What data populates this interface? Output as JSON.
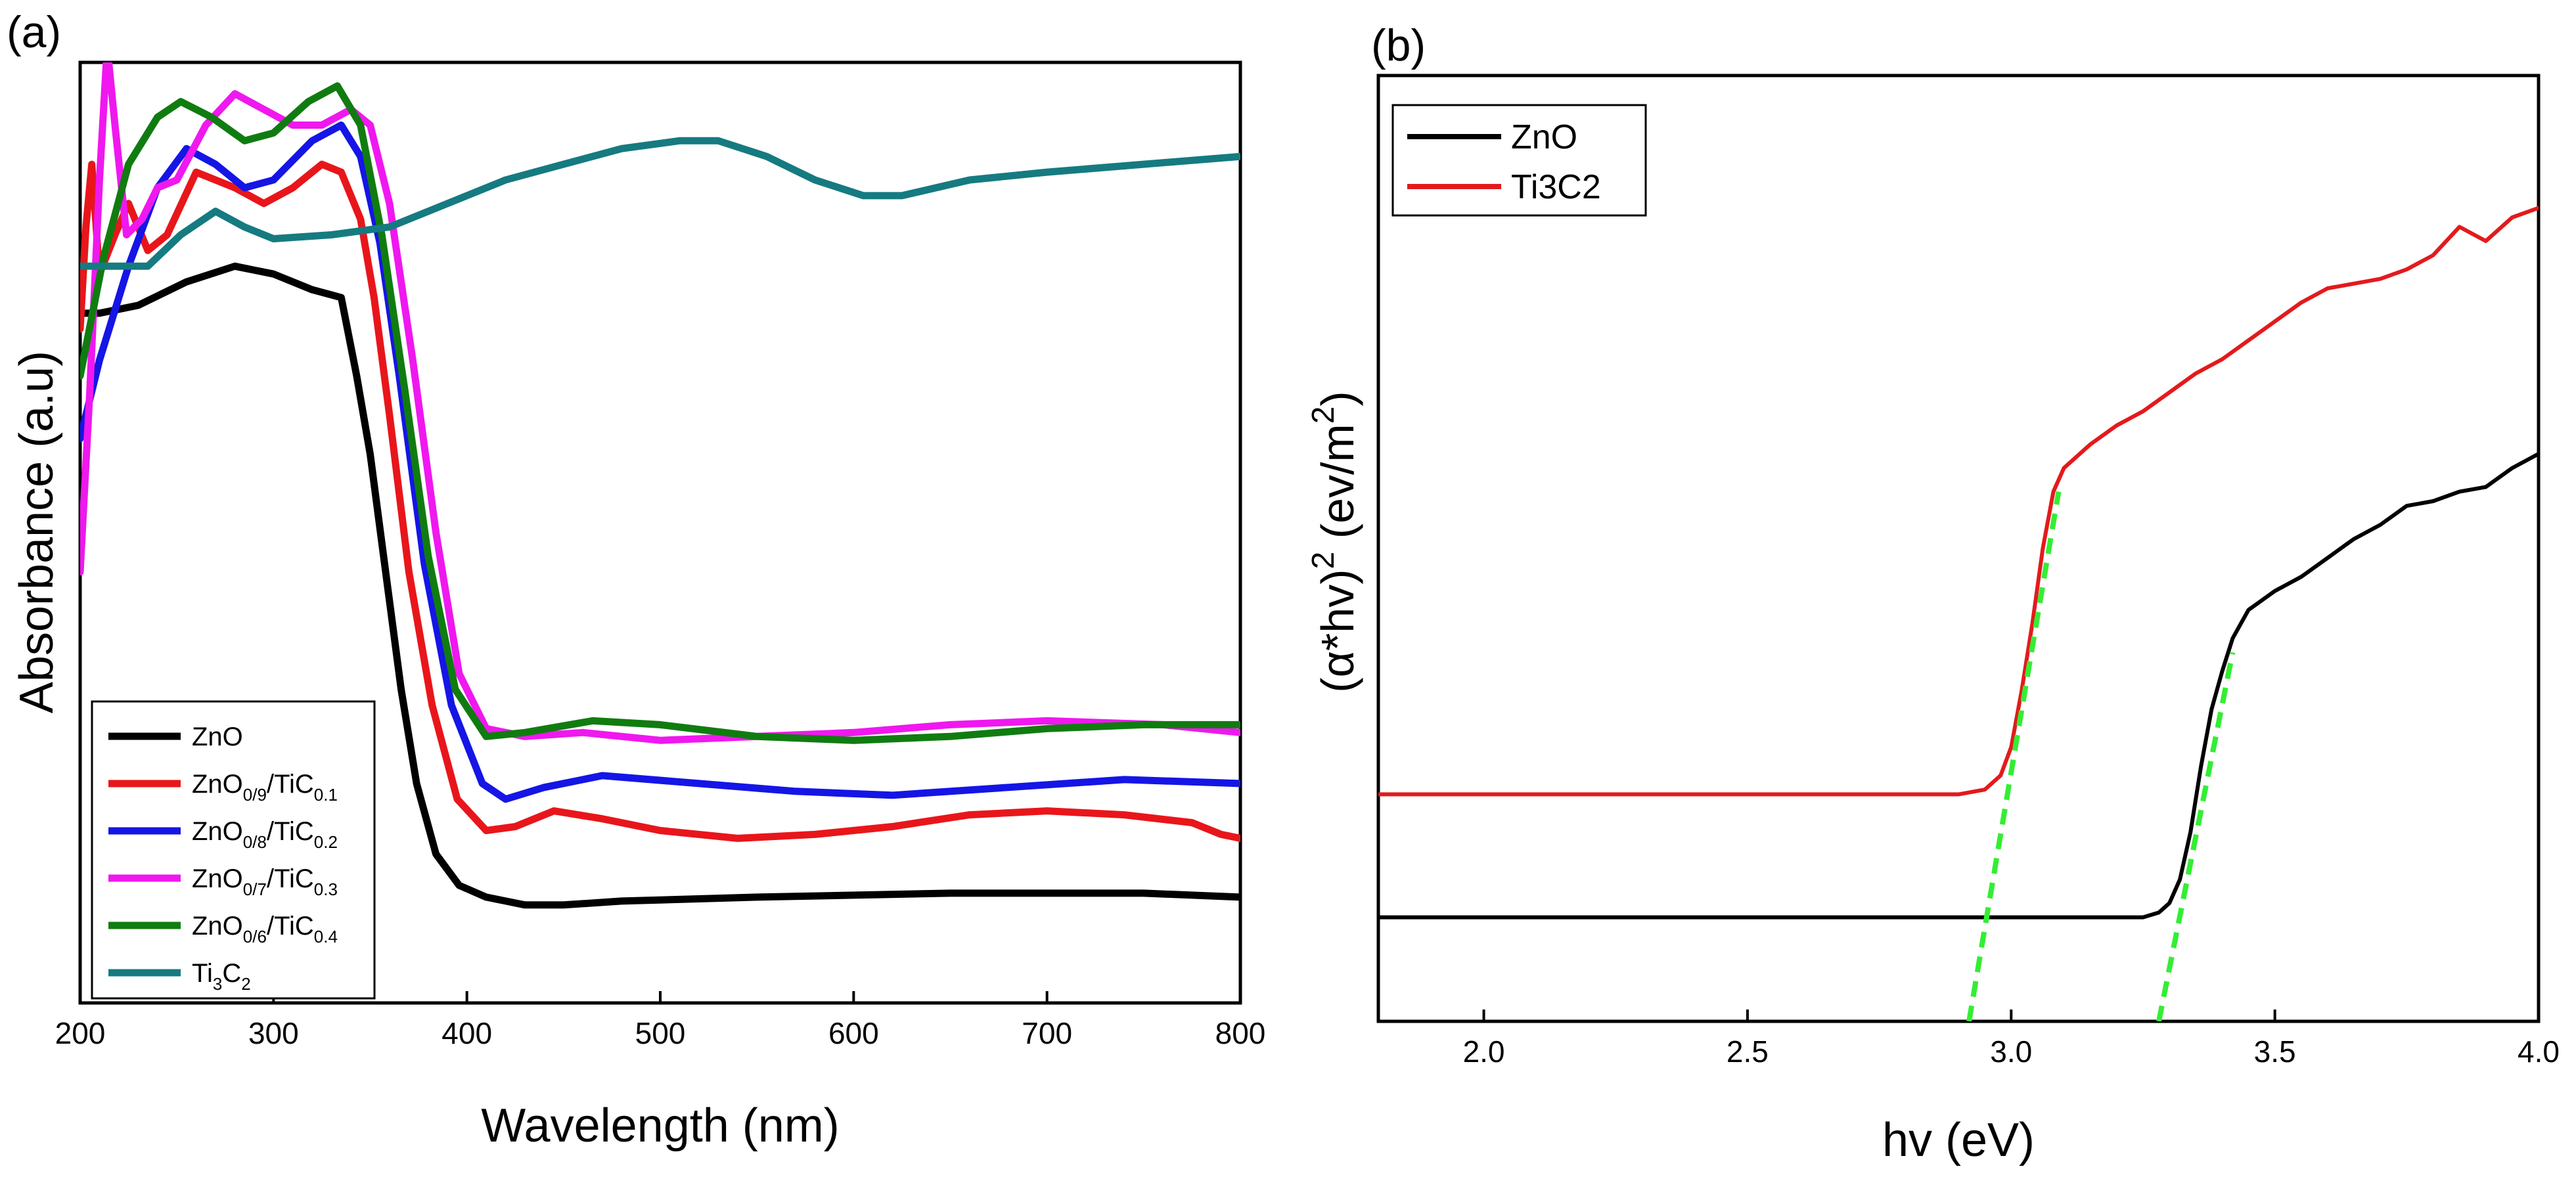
{
  "figure": {
    "panel_a_label": "(a)",
    "panel_b_label": "(b)"
  },
  "chart_data": [
    {
      "type": "line",
      "panel": "(a)",
      "title": "",
      "xlabel": "Wavelength (nm)",
      "ylabel": "Absorbance (a.u)",
      "xlim": [
        200,
        800
      ],
      "ylim": [
        0,
        1.2
      ],
      "xticks": [
        200,
        300,
        400,
        500,
        600,
        700,
        800
      ],
      "yticks_shown": false,
      "grid": false,
      "legend_position": "bottom-left",
      "series": [
        {
          "name": "ZnO",
          "label_main": "ZnO",
          "label_sub1": "",
          "label_mid": "",
          "label_sub2": "",
          "color": "#000000",
          "points": [
            [
              200,
              0.88
            ],
            [
              210,
              0.88
            ],
            [
              230,
              0.89
            ],
            [
              255,
              0.92
            ],
            [
              280,
              0.94
            ],
            [
              300,
              0.93
            ],
            [
              320,
              0.91
            ],
            [
              335,
              0.9
            ],
            [
              343,
              0.8
            ],
            [
              350,
              0.7
            ],
            [
              358,
              0.55
            ],
            [
              366,
              0.4
            ],
            [
              374,
              0.28
            ],
            [
              384,
              0.19
            ],
            [
              396,
              0.15
            ],
            [
              410,
              0.135
            ],
            [
              430,
              0.125
            ],
            [
              450,
              0.125
            ],
            [
              480,
              0.13
            ],
            [
              550,
              0.135
            ],
            [
              650,
              0.14
            ],
            [
              750,
              0.14
            ],
            [
              800,
              0.135
            ]
          ]
        },
        {
          "name": "ZnO0/9/TiC0.1",
          "label_main": "ZnO",
          "label_sub1": "0/9",
          "label_mid": "/TiC",
          "label_sub2": "0.1",
          "color": "#e8161b",
          "points": [
            [
              200,
              0.86
            ],
            [
              203,
              0.99
            ],
            [
              206,
              1.07
            ],
            [
              210,
              0.93
            ],
            [
              218,
              0.98
            ],
            [
              225,
              1.02
            ],
            [
              235,
              0.96
            ],
            [
              245,
              0.98
            ],
            [
              260,
              1.06
            ],
            [
              280,
              1.04
            ],
            [
              295,
              1.02
            ],
            [
              310,
              1.04
            ],
            [
              325,
              1.07
            ],
            [
              335,
              1.06
            ],
            [
              345,
              1.0
            ],
            [
              352,
              0.9
            ],
            [
              360,
              0.75
            ],
            [
              370,
              0.55
            ],
            [
              382,
              0.38
            ],
            [
              395,
              0.26
            ],
            [
              410,
              0.22
            ],
            [
              425,
              0.225
            ],
            [
              445,
              0.245
            ],
            [
              470,
              0.235
            ],
            [
              500,
              0.22
            ],
            [
              540,
              0.21
            ],
            [
              580,
              0.215
            ],
            [
              620,
              0.225
            ],
            [
              660,
              0.24
            ],
            [
              700,
              0.245
            ],
            [
              740,
              0.24
            ],
            [
              775,
              0.23
            ],
            [
              790,
              0.215
            ],
            [
              800,
              0.21
            ]
          ]
        },
        {
          "name": "ZnO0/8/TiC0.2",
          "label_main": "ZnO",
          "label_sub1": "0/8",
          "label_mid": "/TiC",
          "label_sub2": "0.2",
          "color": "#1515e6",
          "points": [
            [
              200,
              0.72
            ],
            [
              210,
              0.82
            ],
            [
              225,
              0.94
            ],
            [
              240,
              1.04
            ],
            [
              255,
              1.09
            ],
            [
              270,
              1.07
            ],
            [
              285,
              1.04
            ],
            [
              300,
              1.05
            ],
            [
              320,
              1.1
            ],
            [
              335,
              1.12
            ],
            [
              345,
              1.08
            ],
            [
              355,
              0.97
            ],
            [
              365,
              0.8
            ],
            [
              378,
              0.56
            ],
            [
              392,
              0.38
            ],
            [
              408,
              0.28
            ],
            [
              420,
              0.26
            ],
            [
              440,
              0.275
            ],
            [
              470,
              0.29
            ],
            [
              520,
              0.28
            ],
            [
              570,
              0.27
            ],
            [
              620,
              0.265
            ],
            [
              680,
              0.275
            ],
            [
              740,
              0.285
            ],
            [
              800,
              0.28
            ]
          ]
        },
        {
          "name": "ZnO0/7/TiC0.3",
          "label_main": "ZnO",
          "label_sub1": "0/7",
          "label_mid": "/TiC",
          "label_sub2": "0.3",
          "color": "#ef18ef",
          "points": [
            [
              200,
              0.55
            ],
            [
              205,
              0.78
            ],
            [
              210,
              1.05
            ],
            [
              214,
              1.22
            ],
            [
              218,
              1.12
            ],
            [
              224,
              0.98
            ],
            [
              232,
              1.0
            ],
            [
              240,
              1.04
            ],
            [
              250,
              1.05
            ],
            [
              265,
              1.12
            ],
            [
              280,
              1.16
            ],
            [
              295,
              1.14
            ],
            [
              310,
              1.12
            ],
            [
              325,
              1.12
            ],
            [
              340,
              1.14
            ],
            [
              350,
              1.12
            ],
            [
              360,
              1.02
            ],
            [
              372,
              0.82
            ],
            [
              384,
              0.6
            ],
            [
              396,
              0.42
            ],
            [
              410,
              0.35
            ],
            [
              430,
              0.34
            ],
            [
              460,
              0.345
            ],
            [
              500,
              0.335
            ],
            [
              550,
              0.34
            ],
            [
              600,
              0.345
            ],
            [
              650,
              0.355
            ],
            [
              700,
              0.36
            ],
            [
              760,
              0.355
            ],
            [
              800,
              0.345
            ]
          ]
        },
        {
          "name": "ZnO0/6/TiC0.4",
          "label_main": "ZnO",
          "label_sub1": "0/6",
          "label_mid": "/TiC",
          "label_sub2": "0.4",
          "color": "#107c10",
          "points": [
            [
              200,
              0.8
            ],
            [
              212,
              0.95
            ],
            [
              225,
              1.07
            ],
            [
              240,
              1.13
            ],
            [
              252,
              1.15
            ],
            [
              268,
              1.13
            ],
            [
              285,
              1.1
            ],
            [
              300,
              1.11
            ],
            [
              318,
              1.15
            ],
            [
              333,
              1.17
            ],
            [
              345,
              1.12
            ],
            [
              356,
              0.98
            ],
            [
              368,
              0.78
            ],
            [
              380,
              0.57
            ],
            [
              394,
              0.4
            ],
            [
              410,
              0.34
            ],
            [
              430,
              0.345
            ],
            [
              465,
              0.36
            ],
            [
              500,
              0.355
            ],
            [
              550,
              0.34
            ],
            [
              600,
              0.335
            ],
            [
              650,
              0.34
            ],
            [
              700,
              0.35
            ],
            [
              750,
              0.355
            ],
            [
              800,
              0.355
            ]
          ]
        },
        {
          "name": "Ti3C2",
          "label_main": "Ti",
          "label_sub1": "3",
          "label_mid": "C",
          "label_sub2": "2",
          "color": "#157b80",
          "points": [
            [
              200,
              0.94
            ],
            [
              215,
              0.94
            ],
            [
              235,
              0.94
            ],
            [
              252,
              0.98
            ],
            [
              270,
              1.01
            ],
            [
              285,
              0.99
            ],
            [
              300,
              0.975
            ],
            [
              330,
              0.98
            ],
            [
              360,
              0.99
            ],
            [
              390,
              1.02
            ],
            [
              420,
              1.05
            ],
            [
              450,
              1.07
            ],
            [
              480,
              1.09
            ],
            [
              510,
              1.1
            ],
            [
              530,
              1.1
            ],
            [
              555,
              1.08
            ],
            [
              580,
              1.05
            ],
            [
              605,
              1.03
            ],
            [
              625,
              1.03
            ],
            [
              660,
              1.05
            ],
            [
              700,
              1.06
            ],
            [
              750,
              1.07
            ],
            [
              800,
              1.08
            ]
          ]
        }
      ]
    },
    {
      "type": "line",
      "panel": "(b)",
      "title": "",
      "xlabel": "hv (eV)",
      "ylabel_main": "(α*hv)",
      "ylabel_sup": "2",
      "ylabel_rest": " (ev/m",
      "ylabel_sup2": "2",
      "ylabel_end": ")",
      "xlim": [
        1.8,
        4.0
      ],
      "ylim": [
        0,
        1.0
      ],
      "xticks": [
        2.0,
        2.5,
        3.0,
        3.5,
        4.0
      ],
      "xtick_labels": [
        "2.0",
        "2.5",
        "3.0",
        "3.5",
        "4.0"
      ],
      "yticks_shown": false,
      "grid": false,
      "legend_position": "top-left",
      "series": [
        {
          "name": "ZnO",
          "color": "#000000",
          "points": [
            [
              1.8,
              0.11
            ],
            [
              3.2,
              0.11
            ],
            [
              3.25,
              0.11
            ],
            [
              3.28,
              0.115
            ],
            [
              3.3,
              0.125
            ],
            [
              3.32,
              0.15
            ],
            [
              3.34,
              0.2
            ],
            [
              3.36,
              0.27
            ],
            [
              3.38,
              0.33
            ],
            [
              3.4,
              0.37
            ],
            [
              3.42,
              0.405
            ],
            [
              3.45,
              0.435
            ],
            [
              3.5,
              0.455
            ],
            [
              3.55,
              0.47
            ],
            [
              3.6,
              0.49
            ],
            [
              3.65,
              0.51
            ],
            [
              3.7,
              0.525
            ],
            [
              3.75,
              0.545
            ],
            [
              3.8,
              0.55
            ],
            [
              3.85,
              0.56
            ],
            [
              3.9,
              0.565
            ],
            [
              3.95,
              0.585
            ],
            [
              4.0,
              0.6
            ]
          ]
        },
        {
          "name": "Ti3C2",
          "color": "#e31a1c",
          "points": [
            [
              1.8,
              0.24
            ],
            [
              2.9,
              0.24
            ],
            [
              2.95,
              0.245
            ],
            [
              2.98,
              0.26
            ],
            [
              3.0,
              0.29
            ],
            [
              3.02,
              0.35
            ],
            [
              3.04,
              0.42
            ],
            [
              3.06,
              0.5
            ],
            [
              3.08,
              0.56
            ],
            [
              3.1,
              0.585
            ],
            [
              3.15,
              0.61
            ],
            [
              3.2,
              0.63
            ],
            [
              3.25,
              0.645
            ],
            [
              3.3,
              0.665
            ],
            [
              3.35,
              0.685
            ],
            [
              3.4,
              0.7
            ],
            [
              3.45,
              0.72
            ],
            [
              3.5,
              0.74
            ],
            [
              3.55,
              0.76
            ],
            [
              3.6,
              0.775
            ],
            [
              3.65,
              0.78
            ],
            [
              3.7,
              0.785
            ],
            [
              3.75,
              0.795
            ],
            [
              3.8,
              0.81
            ],
            [
              3.85,
              0.84
            ],
            [
              3.9,
              0.825
            ],
            [
              3.95,
              0.85
            ],
            [
              4.0,
              0.86
            ]
          ]
        }
      ],
      "tangent_lines": [
        {
          "name": "Ti3C2 tangent",
          "color": "#33ee33",
          "points": [
            [
              2.92,
              0.0
            ],
            [
              3.09,
              0.56
            ]
          ]
        },
        {
          "name": "ZnO tangent",
          "color": "#33ee33",
          "points": [
            [
              3.28,
              0.0
            ],
            [
              3.42,
              0.39
            ]
          ]
        }
      ]
    }
  ]
}
